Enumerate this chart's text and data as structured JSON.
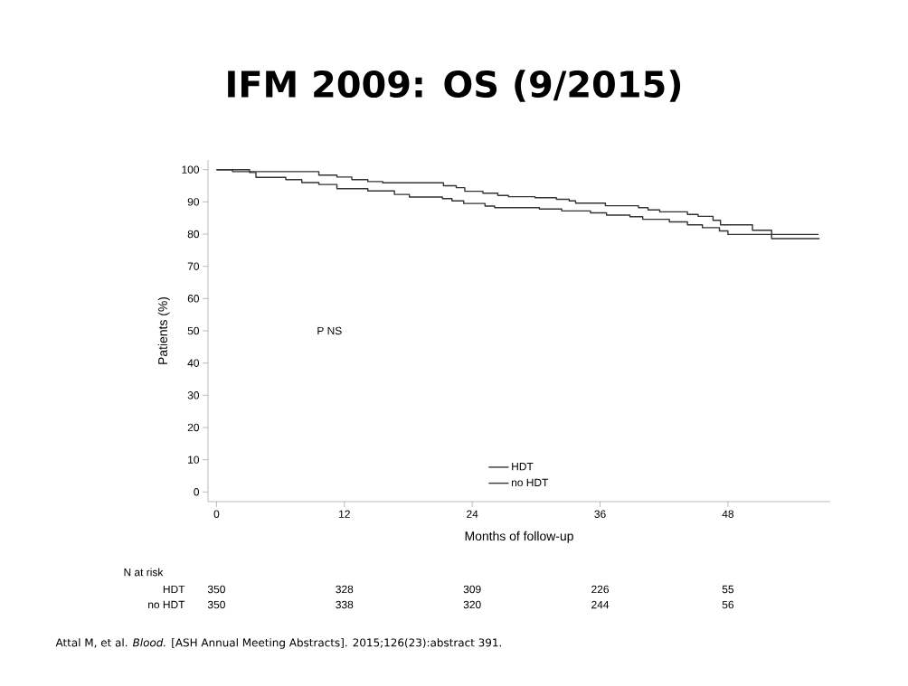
{
  "chart_data": {
    "type": "step",
    "title": "IFM 2009: OS (9/2015)",
    "xlabel": "Months of follow-up",
    "ylabel": "Patients (%)",
    "xlim": [
      -0.8,
      57.6
    ],
    "ylim": [
      -3,
      103
    ],
    "xticks": [
      0,
      12,
      24,
      36,
      48
    ],
    "yticks": [
      0,
      10,
      20,
      30,
      40,
      50,
      60,
      70,
      80,
      90,
      100
    ],
    "legend": "bottom",
    "marker": "none",
    "line_style": "solid",
    "series": [
      {
        "name": "HDT",
        "color": "#333333",
        "x": [
          0,
          1.5,
          9.6,
          11.3,
          12.7,
          14.2,
          15.6,
          21.3,
          22.5,
          23.3,
          25,
          26.4,
          27.4,
          29.9,
          31.9,
          33.1,
          33.7,
          36.5,
          39.6,
          40.5,
          41.6,
          44.2,
          45.2,
          46.6,
          47.3,
          50.3,
          52.1,
          56.6
        ],
        "values": [
          100,
          99.4,
          98.3,
          97.7,
          96.9,
          96.3,
          95.9,
          95.0,
          94.4,
          93.3,
          92.7,
          92.0,
          91.6,
          91.3,
          90.8,
          90.3,
          89.6,
          88.8,
          88.2,
          87.5,
          86.9,
          86.1,
          85.5,
          84.3,
          82.9,
          81.2,
          78.6,
          78.6
        ]
      },
      {
        "name": "no HDT",
        "color": "#333333",
        "x": [
          0,
          3.1,
          3.7,
          6.5,
          8.0,
          9.6,
          11.3,
          14.2,
          16.7,
          18.1,
          21.2,
          22.1,
          23.2,
          25.2,
          26.1,
          30.3,
          32.4,
          35.1,
          36.6,
          38.8,
          40,
          42.5,
          44.2,
          45.6,
          47.2,
          48.0,
          56.5
        ],
        "values": [
          100,
          99.1,
          97.6,
          96.9,
          96.0,
          95.4,
          94.1,
          93.4,
          92.3,
          91.5,
          91.0,
          90.3,
          89.5,
          88.7,
          88.2,
          87.8,
          87.2,
          86.6,
          85.9,
          85.4,
          84.6,
          83.8,
          82.9,
          82.0,
          81.0,
          79.9,
          79.9
        ]
      }
    ],
    "annotations": [
      "P NS",
      "N at risk",
      "HDT",
      "350",
      "328",
      "309",
      "226",
      "55",
      "no HDT",
      "350",
      "338",
      "320",
      "244",
      "56",
      "Attal M, et al. *Blood.* [ASH Annual Meeting Abstracts]. 2015;126(23):abstract 391."
    ]
  }
}
